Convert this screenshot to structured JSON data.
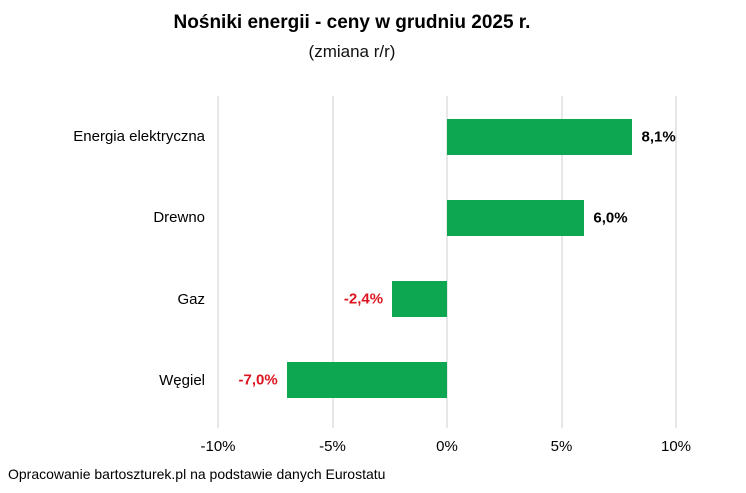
{
  "chart": {
    "title": "Nośniki energii - ceny w grudniu 2025 r.",
    "subtitle": "(zmiana r/r)",
    "source_note": "Opracowanie bartoszturek.pl na podstawie danych Eurostatu"
  },
  "chart_data": {
    "type": "bar",
    "orientation": "horizontal",
    "title": "Nośniki energii - ceny w grudniu 2025 r.",
    "subtitle": "(zmiana r/r)",
    "categories": [
      "Energia elektryczna",
      "Drewno",
      "Gaz",
      "Węgiel"
    ],
    "values": [
      8.1,
      6.0,
      -2.4,
      -7.0
    ],
    "value_labels": [
      "8,1%",
      "6,0%",
      "-2,4%",
      "-7,0%"
    ],
    "xlim": [
      -10,
      10
    ],
    "x_tick_values": [
      -10,
      -5,
      0,
      5,
      10
    ],
    "x_tick_labels": [
      "-10%",
      "-5%",
      "0%",
      "5%",
      "10%"
    ],
    "grid": true,
    "legend": "none",
    "colors": {
      "bar": "#0ca750",
      "positive_label": "#000000",
      "negative_label": "#dc1420",
      "gridline": "#cfcfcf"
    }
  }
}
